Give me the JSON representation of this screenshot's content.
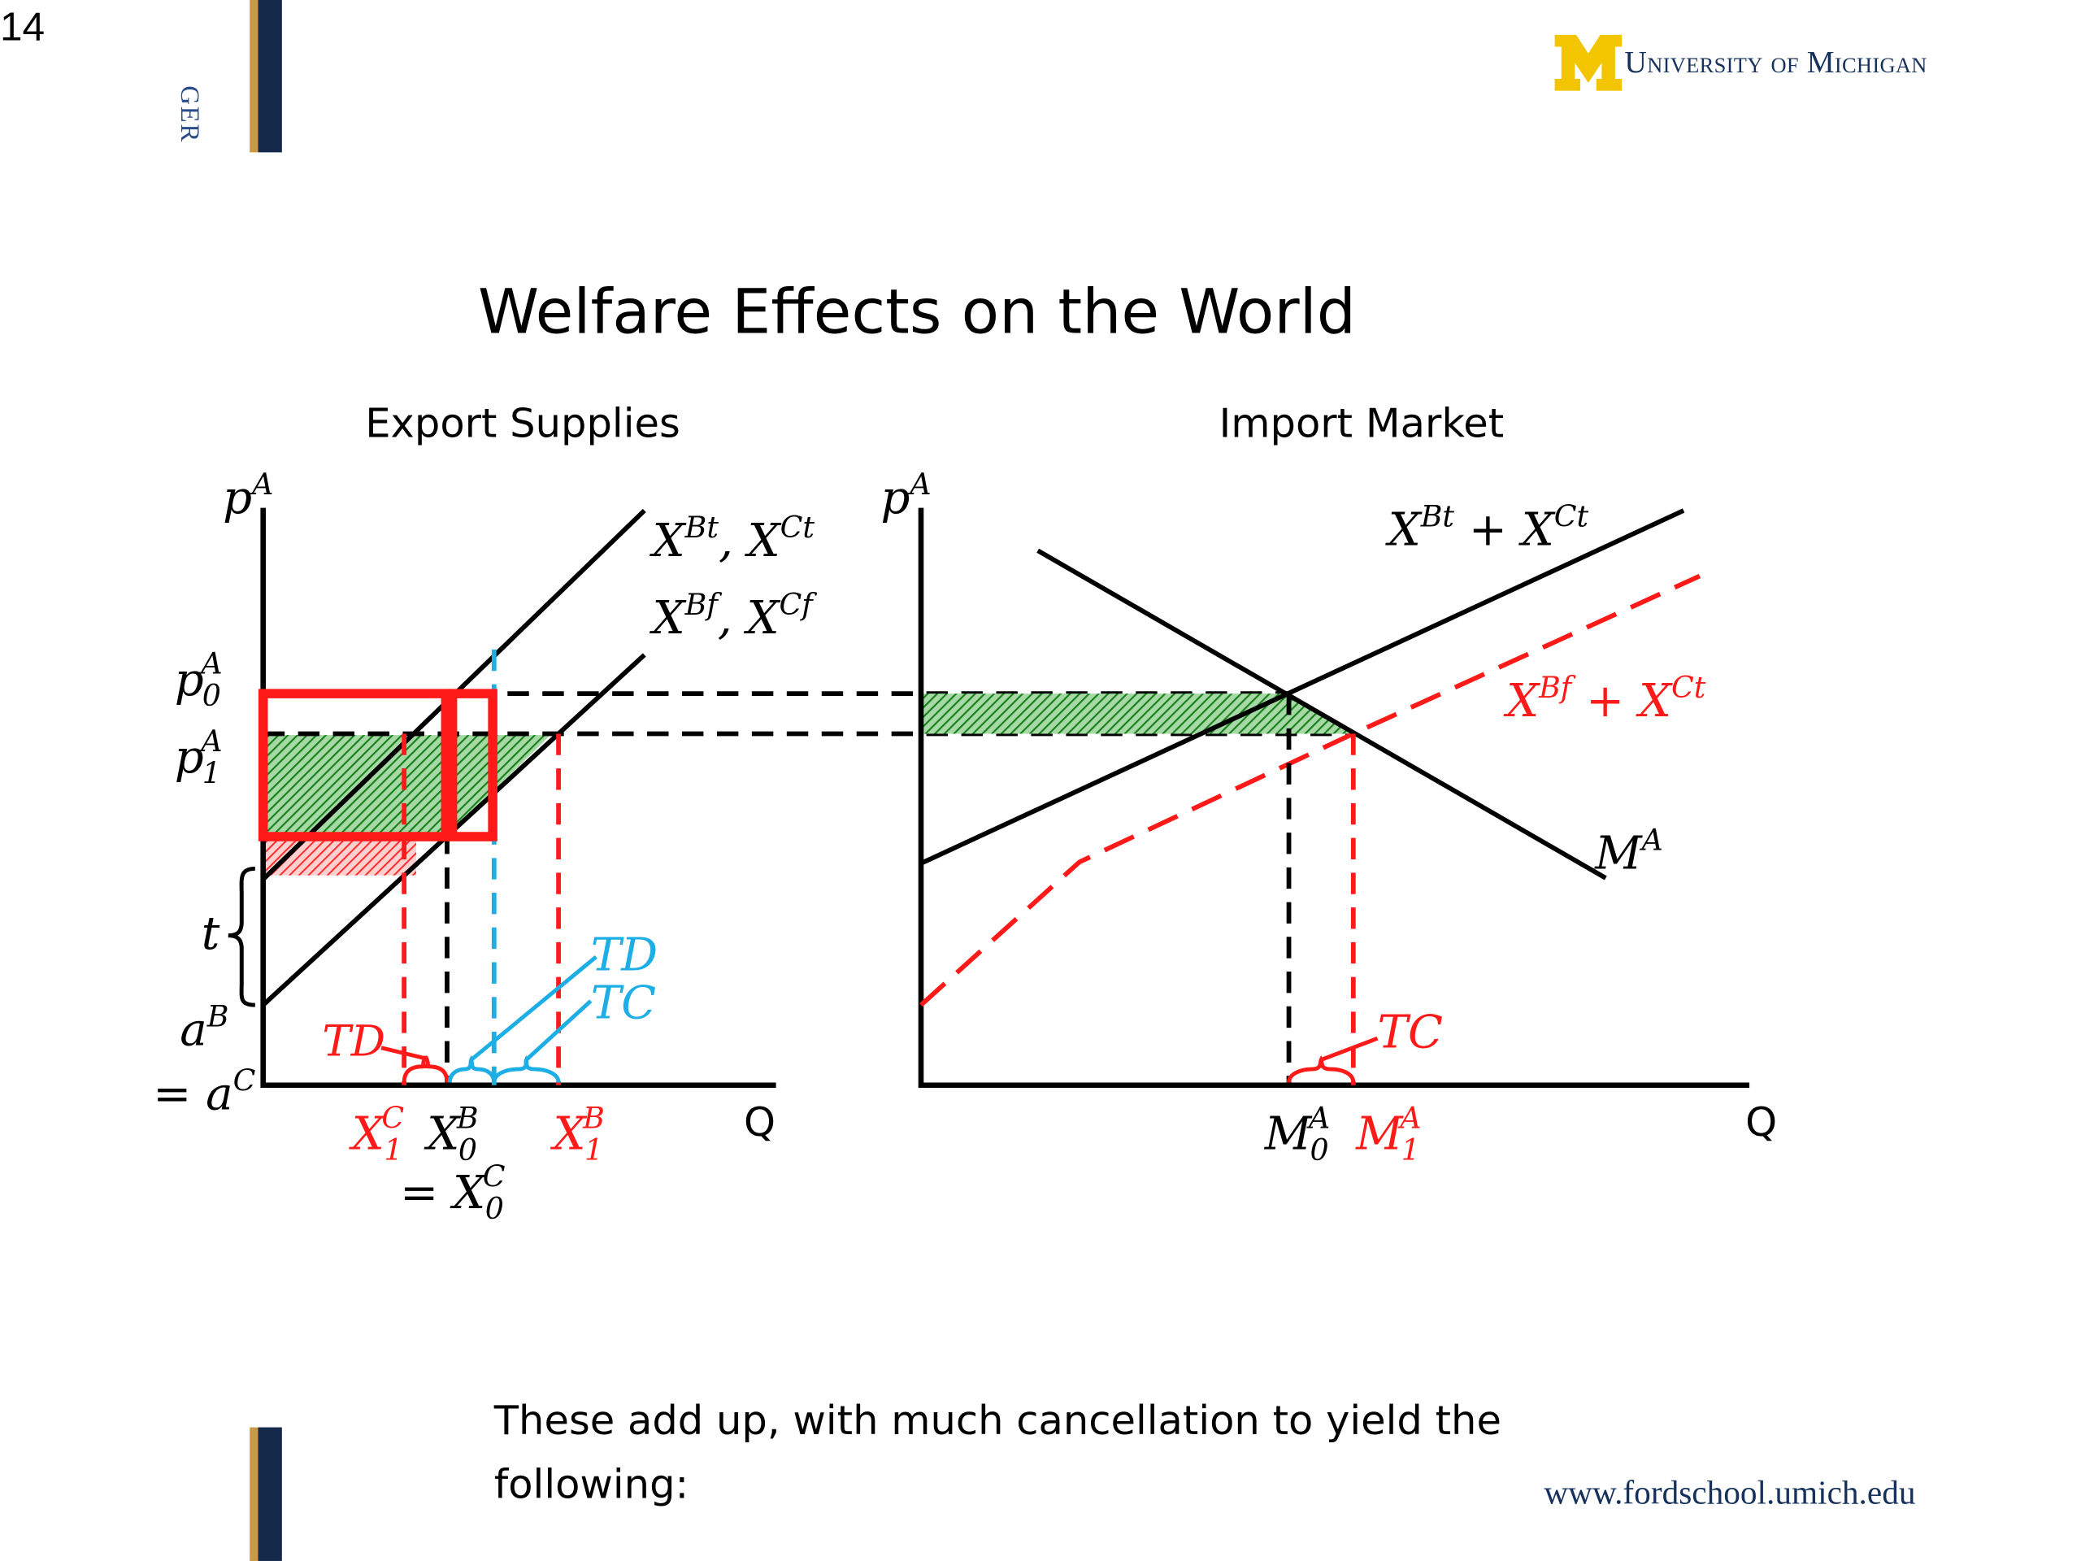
{
  "slide": {
    "number": "14",
    "side_label": "GER",
    "logo_text": "University of Michigan",
    "url": "www.fordschool.umich.edu"
  },
  "title": "Welfare Effects on the World",
  "caption": "These add up, with much cancellation to yield the following:",
  "colors": {
    "red": "#ff1a1a",
    "blue": "#1eaee6",
    "green": "#1c8c1c",
    "black": "#000000",
    "navy": "#15294a",
    "gold": "#f2c500"
  },
  "left_chart": {
    "title": "Export Supplies",
    "axis_y": "p",
    "axis_y_sup": "A",
    "axis_x": "Q",
    "curve_t_label": "X^{Bt}, X^{Ct}",
    "curve_f_label": "X^{Bf}, X^{Cf}",
    "p0": "p",
    "p0_sup": "A",
    "p0_sub": "0",
    "p1": "p",
    "p1_sup": "A",
    "p1_sub": "1",
    "t_label": "t",
    "aB": "a",
    "aB_sup": "B",
    "aC": "= a",
    "aC_sup": "C",
    "x1c": "X",
    "x1c_sup": "C",
    "x1c_sub": "1",
    "x0b": "X",
    "x0b_sup": "B",
    "x0b_sub": "0",
    "x0c": "= X",
    "x0c_sup": "C",
    "x0c_sub": "0",
    "x1b": "X",
    "x1b_sup": "B",
    "x1b_sub": "1",
    "td_red": "TD",
    "td_blue": "TD",
    "tc_blue": "TC"
  },
  "right_chart": {
    "title": "Import Market",
    "axis_y": "p",
    "axis_y_sup": "A",
    "axis_x": "Q",
    "sum_t": "X^{Bt} + X^{Ct}",
    "sum_f": "X^{Bf} + X^{Ct}",
    "demand": "M",
    "demand_sup": "A",
    "m0": "M",
    "m0_sup": "A",
    "m0_sub": "0",
    "m1": "M",
    "m1_sup": "A",
    "m1_sub": "1",
    "tc_red": "TC"
  }
}
